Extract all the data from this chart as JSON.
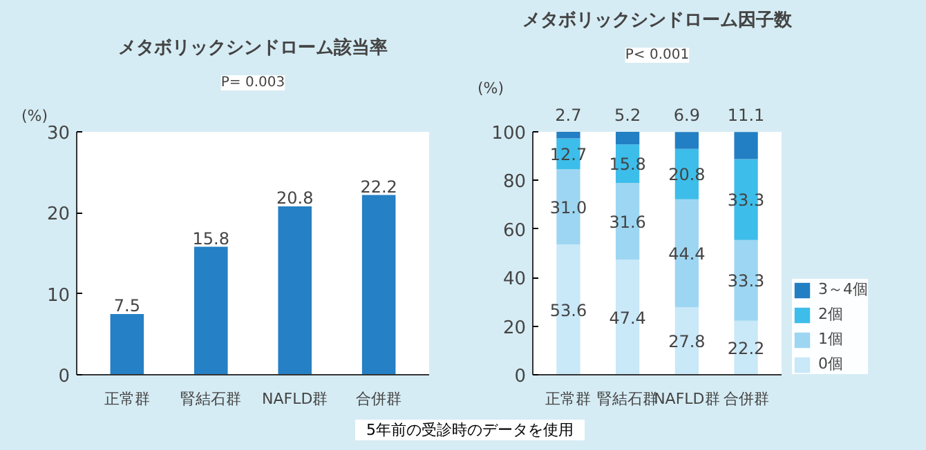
{
  "chart_data": [
    {
      "type": "bar",
      "title": "メタボリックシンドローム該当率",
      "subtitle": "P= 0.003",
      "ylabel": "(%)",
      "categories": [
        "正常群",
        "腎結石群",
        "NAFLD群",
        "合併群"
      ],
      "values": [
        7.5,
        15.8,
        20.8,
        22.2
      ],
      "color": "#2580c5",
      "ylim": [
        0,
        30
      ],
      "yticks": [
        0,
        10,
        20,
        30
      ],
      "data_labels": true,
      "grid": false,
      "legend": false
    },
    {
      "type": "bar",
      "title": "メタボリックシンドローム因子数",
      "subtitle": "P< 0.001",
      "ylabel": "(%)",
      "categories": [
        "正常群",
        "腎結石群",
        "NAFLD群",
        "合併群"
      ],
      "stacked": true,
      "series": [
        {
          "name": "0個",
          "color": "#c9e8f8",
          "values": [
            53.6,
            47.4,
            27.8,
            22.2
          ]
        },
        {
          "name": "1個",
          "color": "#9dd6f2",
          "values": [
            31.0,
            31.6,
            44.4,
            33.3
          ],
          "value_labels": [
            "31.0",
            "31.6",
            "44.4",
            "33.3"
          ]
        },
        {
          "name": "2個",
          "color": "#3dbdea",
          "values": [
            12.7,
            15.8,
            20.8,
            33.3
          ]
        },
        {
          "name": "3～4個",
          "color": "#237fc4",
          "values": [
            2.7,
            5.2,
            6.9,
            11.1
          ]
        }
      ],
      "ylim": [
        0,
        100
      ],
      "yticks": [
        0,
        20,
        40,
        60,
        80,
        100
      ],
      "data_labels": true,
      "grid": false,
      "legend": "right",
      "annotations": [
        "5年前の受診時のデータを使用"
      ]
    }
  ]
}
